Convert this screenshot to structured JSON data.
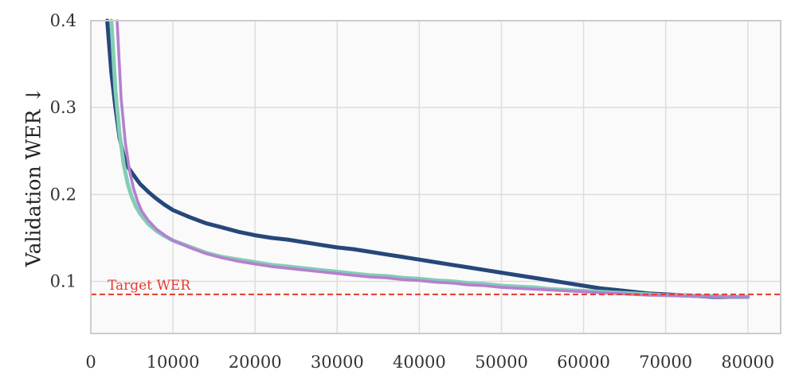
{
  "chart_data": {
    "type": "line",
    "title": "",
    "xlabel": "",
    "ylabel": "Validation WER ↓",
    "xlim": [
      0,
      84000
    ],
    "ylim": [
      0.04,
      0.4
    ],
    "x_ticks": [
      0,
      10000,
      20000,
      30000,
      40000,
      50000,
      60000,
      70000,
      80000
    ],
    "y_ticks": [
      0.1,
      0.2,
      0.3,
      0.4
    ],
    "grid": true,
    "legend": "none",
    "colors": {
      "background": "#fafafb",
      "grid": "#dddddd",
      "frame": "#cccccc",
      "target": "#e8382e"
    },
    "target_line": {
      "label": "Target WER",
      "y": 0.085
    },
    "series": [
      {
        "color": "#27477a",
        "x": [
          2000,
          2500,
          3000,
          3500,
          4000,
          4500,
          5000,
          6000,
          7000,
          8000,
          9000,
          10000,
          12000,
          14000,
          16000,
          18000,
          20000,
          22000,
          24000,
          26000,
          28000,
          30000,
          32000,
          34000,
          36000,
          38000,
          40000,
          42000,
          44000,
          46000,
          48000,
          50000,
          52000,
          54000,
          56000,
          58000,
          60000,
          62000,
          64000,
          66000,
          68000,
          70000,
          72000,
          74000,
          76000,
          78000,
          80000
        ],
        "y": [
          0.4,
          0.34,
          0.3,
          0.265,
          0.245,
          0.232,
          0.225,
          0.212,
          0.203,
          0.195,
          0.188,
          0.182,
          0.174,
          0.167,
          0.162,
          0.157,
          0.153,
          0.15,
          0.148,
          0.145,
          0.142,
          0.139,
          0.137,
          0.134,
          0.131,
          0.128,
          0.125,
          0.122,
          0.119,
          0.116,
          0.113,
          0.11,
          0.107,
          0.104,
          0.101,
          0.098,
          0.095,
          0.092,
          0.09,
          0.088,
          0.086,
          0.085,
          0.084,
          0.083,
          0.082,
          0.082,
          0.082
        ]
      },
      {
        "color": "#84cdb5",
        "x": [
          2500,
          3000,
          3500,
          4000,
          4500,
          5000,
          5500,
          6000,
          7000,
          8000,
          9000,
          10000,
          12000,
          14000,
          16000,
          18000,
          20000,
          22000,
          24000,
          26000,
          28000,
          30000,
          32000,
          34000,
          36000,
          38000,
          40000,
          42000,
          44000,
          46000,
          48000,
          50000,
          52000,
          54000,
          56000,
          58000,
          60000,
          62000,
          64000,
          66000,
          68000,
          70000,
          72000,
          74000,
          76000,
          78000,
          80000
        ],
        "y": [
          0.4,
          0.32,
          0.27,
          0.235,
          0.212,
          0.197,
          0.186,
          0.178,
          0.166,
          0.158,
          0.152,
          0.147,
          0.14,
          0.133,
          0.128,
          0.125,
          0.122,
          0.119,
          0.117,
          0.115,
          0.113,
          0.111,
          0.109,
          0.107,
          0.106,
          0.104,
          0.103,
          0.101,
          0.1,
          0.098,
          0.097,
          0.095,
          0.094,
          0.093,
          0.091,
          0.09,
          0.089,
          0.088,
          0.087,
          0.086,
          0.085,
          0.084,
          0.084,
          0.083,
          0.083,
          0.082,
          0.082
        ]
      },
      {
        "color": "#b57fd0",
        "x": [
          3200,
          3700,
          4200,
          4700,
          5200,
          5700,
          6200,
          7000,
          8000,
          9000,
          10000,
          12000,
          14000,
          16000,
          18000,
          20000,
          22000,
          24000,
          26000,
          28000,
          30000,
          32000,
          34000,
          36000,
          38000,
          40000,
          42000,
          44000,
          46000,
          48000,
          50000,
          52000,
          54000,
          56000,
          58000,
          60000,
          62000,
          64000,
          66000,
          68000,
          70000,
          72000,
          74000,
          76000,
          78000,
          80000
        ],
        "y": [
          0.4,
          0.31,
          0.26,
          0.228,
          0.207,
          0.192,
          0.181,
          0.17,
          0.16,
          0.153,
          0.147,
          0.139,
          0.132,
          0.127,
          0.123,
          0.12,
          0.117,
          0.115,
          0.113,
          0.111,
          0.109,
          0.107,
          0.105,
          0.104,
          0.102,
          0.101,
          0.099,
          0.098,
          0.096,
          0.095,
          0.093,
          0.092,
          0.091,
          0.09,
          0.089,
          0.088,
          0.087,
          0.086,
          0.085,
          0.084,
          0.084,
          0.083,
          0.083,
          0.082,
          0.082,
          0.082
        ]
      }
    ]
  }
}
